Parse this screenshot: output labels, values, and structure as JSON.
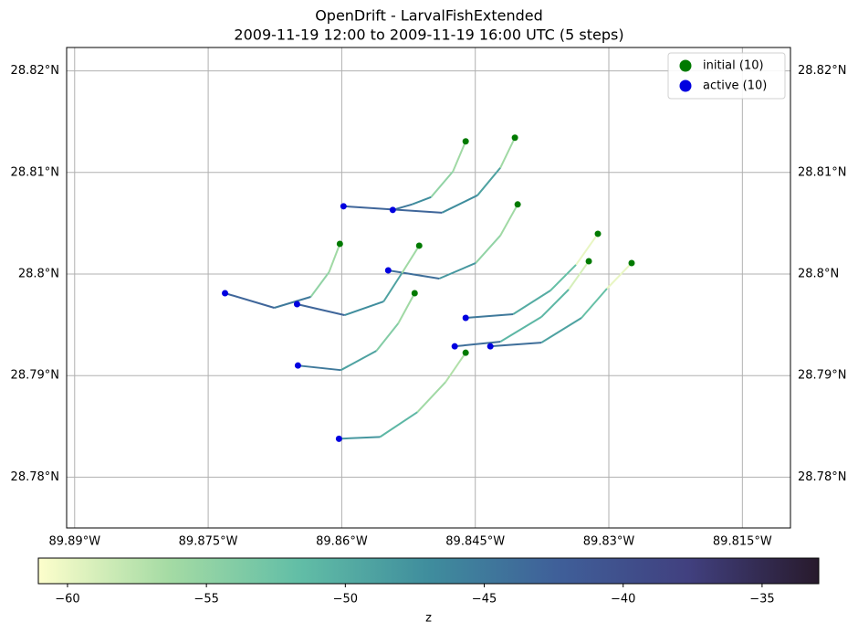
{
  "chart_data": {
    "type": "trajectory",
    "title": "OpenDrift - LarvalFishExtended",
    "subtitle": "2009-11-19 12:00 to 2009-11-19 16:00 UTC (5 steps)",
    "xlim": [
      -89.8909,
      -89.8096
    ],
    "ylim": [
      28.775,
      28.8223
    ],
    "xticks": [
      {
        "value": -89.89,
        "label": "89.89°W"
      },
      {
        "value": -89.875,
        "label": "89.875°W"
      },
      {
        "value": -89.86,
        "label": "89.86°W"
      },
      {
        "value": -89.845,
        "label": "89.845°W"
      },
      {
        "value": -89.83,
        "label": "89.83°W"
      },
      {
        "value": -89.815,
        "label": "89.815°W"
      }
    ],
    "yticks": [
      {
        "value": 28.78,
        "label": "28.78°N"
      },
      {
        "value": 28.79,
        "label": "28.79°N"
      },
      {
        "value": 28.8,
        "label": "28.8°N"
      },
      {
        "value": 28.81,
        "label": "28.81°N"
      },
      {
        "value": 28.82,
        "label": "28.82°N"
      }
    ],
    "grid": true,
    "legend": "upper right",
    "initial": {
      "name": "initial (10)",
      "color": "#007a00"
    },
    "active": {
      "name": "active (10)",
      "color": "#0000e0"
    },
    "trajectories": [
      {
        "lon": [
          -89.84608,
          -89.84751,
          -89.84997,
          -89.85212,
          -89.85427
        ],
        "lat": [
          28.81306,
          28.81009,
          28.80757,
          28.80685,
          28.80631
        ],
        "z": [
          -57,
          -56,
          -55,
          -47,
          -45
        ]
      },
      {
        "lon": [
          -89.84055,
          -89.84219,
          -89.84475,
          -89.84874,
          -89.8598
        ],
        "lat": [
          28.81342,
          28.81045,
          28.80775,
          28.80604,
          28.80667
        ],
        "z": [
          -57,
          -56,
          -49,
          -47,
          -43
        ]
      },
      {
        "lon": [
          -89.84024,
          -89.84219,
          -89.84495,
          -89.84905,
          -89.85478
        ],
        "lat": [
          28.80685,
          28.80378,
          28.80108,
          28.79955,
          28.80036
        ],
        "z": [
          -57,
          -56,
          -55,
          -48,
          -44
        ]
      },
      {
        "lon": [
          -89.8513,
          -89.85324,
          -89.85529,
          -89.85969,
          -89.86502
        ],
        "lat": [
          28.80279,
          28.80009,
          28.7973,
          28.79595,
          28.79703
        ],
        "z": [
          -57,
          -56,
          -49,
          -47,
          -43
        ]
      },
      {
        "lon": [
          -89.86021,
          -89.86143,
          -89.86348,
          -89.86758,
          -89.87311
        ],
        "lat": [
          28.80297,
          28.80018,
          28.79775,
          28.79667,
          28.79811
        ],
        "z": [
          -57,
          -56,
          -55,
          -45,
          -43
        ]
      },
      {
        "lon": [
          -89.83123,
          -89.83369,
          -89.83655,
          -89.84075,
          -89.84608
        ],
        "lat": [
          28.80396,
          28.8009,
          28.79838,
          28.79604,
          28.79568
        ],
        "z": [
          -61,
          -60,
          -52,
          -50,
          -45
        ]
      },
      {
        "lon": [
          -89.83225,
          -89.83451,
          -89.83758,
          -89.84219,
          -89.84731
        ],
        "lat": [
          28.80126,
          28.79847,
          28.79577,
          28.79333,
          28.79288
        ],
        "z": [
          -60,
          -59,
          -51,
          -51,
          -44
        ]
      },
      {
        "lon": [
          -89.82744,
          -89.83021,
          -89.83307,
          -89.83758,
          -89.84331
        ],
        "lat": [
          28.80108,
          28.79856,
          28.79568,
          28.79324,
          28.79288
        ],
        "z": [
          -61,
          -60,
          -52,
          -49,
          -44
        ]
      },
      {
        "lon": [
          -89.85181,
          -89.85365,
          -89.85611,
          -89.8601,
          -89.86492
        ],
        "lat": [
          28.79811,
          28.79514,
          28.79243,
          28.79054,
          28.79099
        ],
        "z": [
          -57,
          -56,
          -54,
          -49,
          -45
        ]
      },
      {
        "lon": [
          -89.84608,
          -89.84833,
          -89.8515,
          -89.8557,
          -89.86031
        ],
        "lat": [
          28.79225,
          28.78937,
          28.7864,
          28.78396,
          28.78378
        ],
        "z": [
          -58,
          -57,
          -56,
          -51,
          -48
        ]
      }
    ],
    "colorbar": {
      "label": "z",
      "lim": [
        -61.05,
        -32.96
      ],
      "ticks": [
        {
          "value": -60,
          "label": "−60"
        },
        {
          "value": -55,
          "label": "−55"
        },
        {
          "value": -50,
          "label": "−50"
        },
        {
          "value": -45,
          "label": "−45"
        },
        {
          "value": -40,
          "label": "−40"
        },
        {
          "value": -35,
          "label": "−35"
        }
      ],
      "colors": [
        "#fdfecc",
        "#a5dba4",
        "#62bea6",
        "#3f8d9d",
        "#3f5f99",
        "#41407f",
        "#281a2c"
      ]
    }
  }
}
